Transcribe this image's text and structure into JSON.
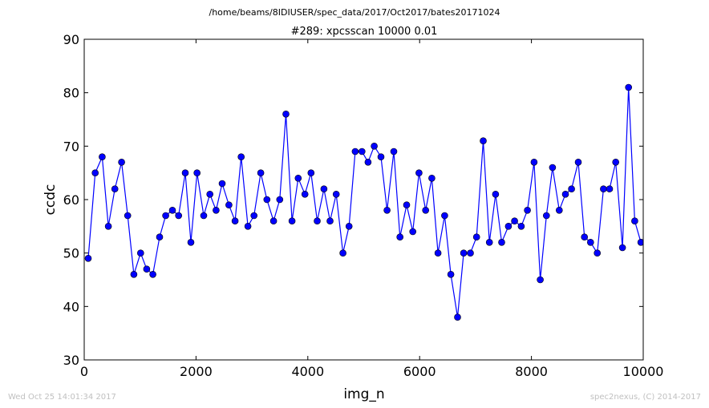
{
  "suptitle": "/home/beams/8IDIUSER/spec_data/2017/Oct2017/bates20171024",
  "footer": {
    "left": "Wed Oct 25 14:01:34 2017",
    "right": "spec2nexus, (C) 2014-2017"
  },
  "chart_data": {
    "type": "line",
    "title": "#289: xpcsscan 10000 0.01",
    "xlabel": "img_n",
    "ylabel": "ccdc",
    "xlim": [
      0,
      10000
    ],
    "ylim": [
      30,
      90
    ],
    "xticks": [
      "0",
      "2000",
      "4000",
      "6000",
      "8000",
      "10000"
    ],
    "yticks": [
      "30",
      "40",
      "50",
      "60",
      "70",
      "80",
      "90"
    ],
    "grid": false,
    "markers": true,
    "color": "#0000ff",
    "series": [
      {
        "x": [
          72,
          197,
          322,
          432,
          548,
          668,
          778,
          888,
          1008,
          1118,
          1228,
          1348,
          1458,
          1578,
          1688,
          1808,
          1908,
          2018,
          2138,
          2248,
          2358,
          2468,
          2588,
          2698,
          2808,
          2928,
          3038,
          3158,
          3268,
          3388,
          3498,
          3608,
          3718,
          3828,
          3948,
          4058,
          4168,
          4288,
          4398,
          4508,
          4628,
          4738,
          4848,
          4968,
          5078,
          5188,
          5308,
          5418,
          5538,
          5648,
          5768,
          5878,
          5988,
          6108,
          6218,
          6328,
          6448,
          6558,
          6678,
          6788,
          6908,
          7018,
          7138,
          7248,
          7358,
          7468,
          7588,
          7698,
          7818,
          7928,
          8048,
          8158,
          8268,
          8378,
          8498,
          8608,
          8718,
          8838,
          8948,
          9058,
          9178,
          9288,
          9398,
          9508,
          9628,
          9738,
          9848,
          9958
        ],
        "y": [
          49,
          65,
          68,
          55,
          62,
          67,
          57,
          46,
          50,
          47,
          46,
          53,
          57,
          58,
          57,
          65,
          52,
          65,
          57,
          61,
          58,
          63,
          59,
          56,
          68,
          55,
          57,
          65,
          60,
          56,
          60,
          76,
          56,
          64,
          61,
          65,
          56,
          62,
          56,
          61,
          50,
          55,
          69,
          69,
          67,
          70,
          68,
          58,
          69,
          53,
          59,
          54,
          65,
          58,
          64,
          50,
          57,
          46,
          38,
          50,
          50,
          53,
          71,
          52,
          61,
          52,
          55,
          56,
          55,
          58,
          67,
          45,
          57,
          66,
          58,
          61,
          62,
          67,
          53,
          52,
          50,
          62,
          62,
          67,
          51,
          81,
          56,
          52
        ]
      }
    ]
  }
}
